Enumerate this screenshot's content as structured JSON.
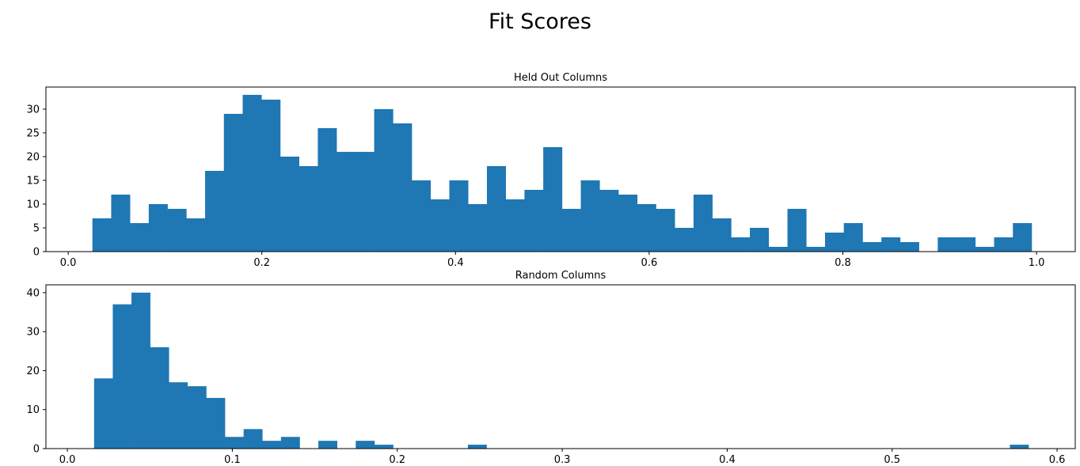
{
  "figure": {
    "title": "Fit Scores"
  },
  "colors": {
    "bar": "#1f77b4",
    "axis": "#000000"
  },
  "chart_data": [
    {
      "type": "bar",
      "title": "Held Out Columns",
      "xlabel": "",
      "ylabel": "",
      "xlim": [
        -0.023,
        1.04
      ],
      "ylim": [
        0,
        34.65
      ],
      "xticks": [
        0.0,
        0.2,
        0.4,
        0.6,
        0.8,
        1.0
      ],
      "xtick_labels": [
        "0.0",
        "0.2",
        "0.4",
        "0.6",
        "0.8",
        "1.0"
      ],
      "yticks": [
        0,
        5,
        10,
        15,
        20,
        25,
        30
      ],
      "ytick_labels": [
        "0",
        "5",
        "10",
        "15",
        "20",
        "25",
        "30"
      ],
      "bin_start": 0.025,
      "bin_width": 0.0194,
      "values": [
        7,
        12,
        6,
        10,
        9,
        7,
        17,
        29,
        33,
        32,
        20,
        18,
        26,
        21,
        21,
        30,
        27,
        15,
        11,
        15,
        10,
        18,
        11,
        13,
        22,
        9,
        15,
        13,
        12,
        10,
        9,
        5,
        12,
        7,
        3,
        5,
        1,
        9,
        1,
        4,
        6,
        2,
        3,
        2,
        0,
        3,
        3,
        1,
        3,
        6
      ]
    },
    {
      "type": "bar",
      "title": "Random Columns",
      "xlabel": "",
      "ylabel": "",
      "xlim": [
        -0.013,
        0.611
      ],
      "ylim": [
        0,
        42
      ],
      "xticks": [
        0.0,
        0.1,
        0.2,
        0.3,
        0.4,
        0.5,
        0.6
      ],
      "xtick_labels": [
        "0.0",
        "0.1",
        "0.2",
        "0.3",
        "0.4",
        "0.5",
        "0.6"
      ],
      "yticks": [
        0,
        10,
        20,
        30,
        40
      ],
      "ytick_labels": [
        "0",
        "10",
        "20",
        "30",
        "40"
      ],
      "bin_start": 0.0162,
      "bin_width": 0.01133,
      "values": [
        18,
        37,
        40,
        26,
        17,
        16,
        13,
        3,
        5,
        2,
        3,
        0,
        2,
        0,
        2,
        1,
        0,
        0,
        0,
        0,
        1,
        0,
        0,
        0,
        0,
        0,
        0,
        0,
        0,
        0,
        0,
        0,
        0,
        0,
        0,
        0,
        0,
        0,
        0,
        0,
        0,
        0,
        0,
        0,
        0,
        0,
        0,
        0,
        0,
        1
      ]
    }
  ]
}
